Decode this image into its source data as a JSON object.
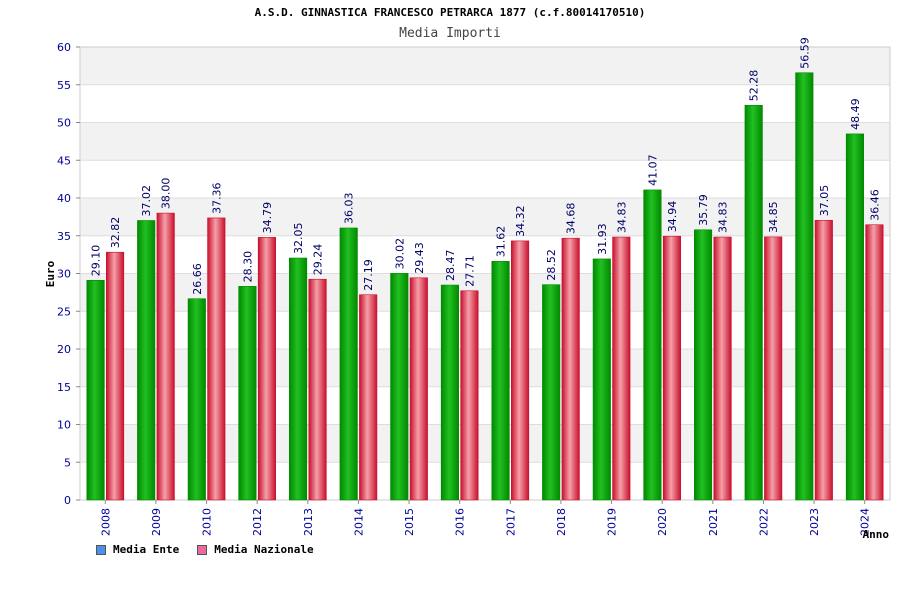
{
  "colors": {
    "ente": "#22c022",
    "ente_dark": "#008a00",
    "nazionale": "#ee3a4a",
    "nazionale_dark": "#c8102e",
    "swatch_ente": "#4d8ee8",
    "swatch_nazionale": "#e86ba0",
    "band": "#f2f2f2",
    "tick_text": "#000099",
    "label_text": "#000066"
  },
  "chart_data": {
    "type": "bar",
    "title": "A.S.D. GINNASTICA FRANCESCO PETRARCA 1877 (c.f.80014170510)",
    "subtitle": "Media Importi",
    "xlabel": "Anno",
    "ylabel": "Euro",
    "ylim": [
      0,
      60
    ],
    "yticks": [
      0,
      5,
      10,
      15,
      20,
      25,
      30,
      35,
      40,
      45,
      50,
      55,
      60
    ],
    "grid": true,
    "legend_position": "bottom-left",
    "categories": [
      "2008",
      "2009",
      "2010",
      "2012",
      "2013",
      "2014",
      "2015",
      "2016",
      "2017",
      "2018",
      "2019",
      "2020",
      "2021",
      "2022",
      "2023",
      "2024"
    ],
    "series": [
      {
        "name": "Media Ente",
        "values": [
          29.1,
          37.02,
          26.66,
          28.3,
          32.05,
          36.03,
          30.02,
          28.47,
          31.62,
          28.52,
          31.93,
          41.07,
          35.79,
          52.28,
          56.59,
          48.49
        ],
        "labels": [
          "29.10",
          "37.02",
          "26.66",
          "28.30",
          "32.05",
          "36.03",
          "30.02",
          "28.47",
          "31.62",
          "28.52",
          "31.93",
          "41.07",
          "35.79",
          "52.28",
          "56.59",
          "48.49"
        ]
      },
      {
        "name": "Media Nazionale",
        "values": [
          32.82,
          38.0,
          37.36,
          34.79,
          29.24,
          27.19,
          29.43,
          27.71,
          34.32,
          34.68,
          34.83,
          34.94,
          34.83,
          34.85,
          37.05,
          36.46
        ],
        "labels": [
          "32.82",
          "38.00",
          "37.36",
          "34.79",
          "29.24",
          "27.19",
          "29.43",
          "27.71",
          "34.32",
          "34.68",
          "34.83",
          "34.94",
          "34.83",
          "34.85",
          "37.05",
          "36.46"
        ]
      }
    ]
  }
}
